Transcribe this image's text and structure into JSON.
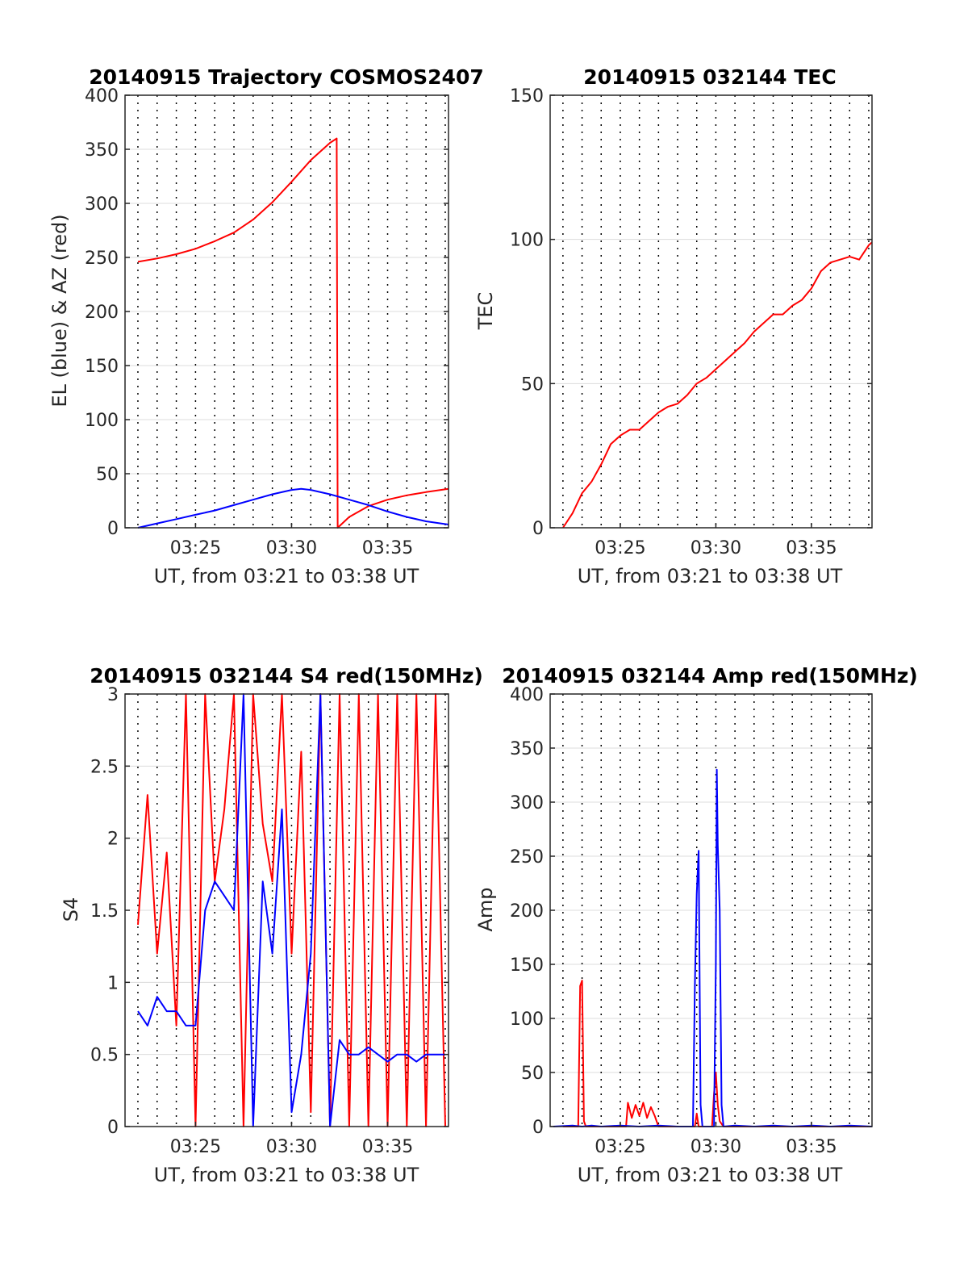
{
  "chart_data": [
    {
      "type": "line",
      "title": "20140915 Trajectory COSMOS2407",
      "xlabel": "UT, from 03:21 to 03:38 UT",
      "ylabel": "EL (blue) & AZ (red)",
      "xlim": [
        21.33,
        38.17
      ],
      "ylim": [
        0,
        400
      ],
      "yticks": [
        0,
        50,
        100,
        150,
        200,
        250,
        300,
        350,
        400
      ],
      "xticks": [
        25,
        30,
        35
      ],
      "xtick_labels": [
        "03:25",
        "03:30",
        "03:35"
      ],
      "grid": "dotted vertical every minute, horizontal at y ticks",
      "series": [
        {
          "color": "#ff0000",
          "x": [
            22.0,
            23.0,
            24.0,
            25.0,
            26.0,
            27.0,
            28.0,
            29.0,
            30.0,
            31.0,
            32.0,
            32.35,
            32.4,
            33.0,
            34.0,
            35.0,
            36.0,
            37.0,
            38.17
          ],
          "values": [
            246,
            249,
            253,
            258,
            265,
            273,
            285,
            301,
            320,
            340,
            356,
            360,
            0,
            10,
            20,
            26,
            30,
            33,
            36
          ]
        },
        {
          "color": "#0000ff",
          "x": [
            22.0,
            23.0,
            24.0,
            25.0,
            26.0,
            27.0,
            28.0,
            29.0,
            30.0,
            30.5,
            31.0,
            32.0,
            33.0,
            34.0,
            35.0,
            36.0,
            37.0,
            38.17
          ],
          "values": [
            0,
            4,
            8,
            12,
            16,
            21,
            26,
            31,
            35,
            36,
            35,
            31,
            26,
            21,
            15,
            10,
            6,
            3
          ]
        }
      ]
    },
    {
      "type": "line",
      "title": "20140915 032144 TEC",
      "xlabel": "UT, from 03:21 to 03:38 UT",
      "ylabel": "TEC",
      "xlim": [
        21.33,
        38.17
      ],
      "ylim": [
        0,
        150
      ],
      "yticks": [
        0,
        50,
        100,
        150
      ],
      "xticks": [
        25,
        30,
        35
      ],
      "xtick_labels": [
        "03:25",
        "03:30",
        "03:35"
      ],
      "series": [
        {
          "color": "#ff0000",
          "x": [
            22.0,
            22.5,
            23.0,
            23.5,
            24.0,
            24.5,
            25.0,
            25.5,
            26.0,
            26.5,
            27.0,
            27.5,
            28.0,
            28.5,
            29.0,
            29.5,
            30.0,
            30.5,
            31.0,
            31.5,
            32.0,
            32.5,
            33.0,
            33.5,
            34.0,
            34.5,
            35.0,
            35.5,
            36.0,
            36.5,
            37.0,
            37.5,
            38.0,
            38.17
          ],
          "values": [
            0,
            5,
            12,
            16,
            22,
            29,
            32,
            34,
            34,
            37,
            40,
            42,
            43,
            46,
            50,
            52,
            55,
            58,
            61,
            64,
            68,
            71,
            74,
            74,
            77,
            79,
            83,
            89,
            92,
            93,
            94,
            93,
            98,
            99
          ]
        }
      ]
    },
    {
      "type": "line",
      "title": "20140915 032144 S4 red(150MHz)",
      "xlabel": "UT, from 03:21 to 03:38 UT",
      "ylabel": "S4",
      "xlim": [
        21.33,
        38.17
      ],
      "ylim": [
        0,
        3
      ],
      "yticks": [
        0,
        0.5,
        1,
        1.5,
        2,
        2.5,
        3
      ],
      "ytick_labels": [
        "0",
        "0.5",
        "1",
        "1.5",
        "2",
        "2.5",
        "3"
      ],
      "xticks": [
        25,
        30,
        35
      ],
      "xtick_labels": [
        "03:25",
        "03:30",
        "03:35"
      ],
      "series": [
        {
          "color": "#ff0000",
          "x": [
            22.0,
            22.5,
            23.0,
            23.5,
            24.0,
            24.5,
            25.0,
            25.5,
            26.0,
            26.5,
            27.0,
            27.5,
            28.0,
            28.5,
            29.0,
            29.5,
            30.0,
            30.5,
            31.0,
            31.5,
            32.0,
            32.5,
            33.0,
            33.5,
            34.0,
            34.5,
            35.0,
            35.5,
            36.0,
            36.5,
            37.0,
            37.5,
            38.0
          ],
          "values": [
            1.4,
            2.3,
            1.2,
            1.9,
            0.7,
            3.0,
            0.0,
            3.0,
            1.7,
            2.2,
            3.0,
            0.0,
            3.0,
            2.1,
            1.7,
            3.0,
            1.2,
            2.6,
            0.1,
            3.0,
            0.0,
            3.0,
            0.0,
            3.0,
            0.0,
            3.0,
            0.0,
            3.0,
            0.0,
            3.0,
            0.0,
            3.0,
            0.0
          ]
        },
        {
          "color": "#0000ff",
          "x": [
            22.0,
            22.5,
            23.0,
            23.5,
            24.0,
            24.5,
            25.0,
            25.5,
            26.0,
            26.5,
            27.0,
            27.5,
            28.0,
            28.5,
            29.0,
            29.5,
            30.0,
            30.5,
            31.0,
            31.5,
            32.0,
            32.5,
            33.0,
            33.5,
            34.0,
            34.5,
            35.0,
            35.5,
            36.0,
            36.5,
            37.0,
            37.5,
            38.0
          ],
          "values": [
            0.8,
            0.7,
            0.9,
            0.8,
            0.8,
            0.7,
            0.7,
            1.5,
            1.7,
            1.6,
            1.5,
            3.0,
            0.0,
            1.7,
            1.2,
            2.2,
            0.1,
            0.5,
            1.2,
            3.0,
            0.0,
            0.6,
            0.5,
            0.5,
            0.55,
            0.5,
            0.45,
            0.5,
            0.5,
            0.45,
            0.5,
            0.5,
            0.5
          ]
        }
      ]
    },
    {
      "type": "line",
      "title": "20140915 032144 Amp red(150MHz)",
      "xlabel": "UT, from 03:21 to 03:38 UT",
      "ylabel": "Amp",
      "xlim": [
        21.33,
        38.17
      ],
      "ylim": [
        0,
        400
      ],
      "yticks": [
        0,
        50,
        100,
        150,
        200,
        250,
        300,
        350,
        400
      ],
      "xticks": [
        25,
        30,
        35
      ],
      "xtick_labels": [
        "03:25",
        "03:30",
        "03:35"
      ],
      "series": [
        {
          "color": "#ff0000",
          "x": [
            22.0,
            22.8,
            22.9,
            23.0,
            23.1,
            23.2,
            25.0,
            25.3,
            25.4,
            25.6,
            25.8,
            26.0,
            26.2,
            26.4,
            26.6,
            26.8,
            27.0,
            28.9,
            29.0,
            29.1,
            29.8,
            29.9,
            30.0,
            30.1,
            30.2,
            30.4,
            38.17
          ],
          "values": [
            0,
            0,
            130,
            135,
            5,
            0,
            0,
            0,
            22,
            8,
            20,
            10,
            22,
            8,
            18,
            10,
            0,
            0,
            12,
            0,
            0,
            30,
            50,
            20,
            5,
            0,
            0
          ]
        },
        {
          "color": "#0000ff",
          "x": [
            21.5,
            22.5,
            23.0,
            23.5,
            24.0,
            25.0,
            26.0,
            27.0,
            28.0,
            28.8,
            28.9,
            29.0,
            29.1,
            29.2,
            29.3,
            29.9,
            30.0,
            30.05,
            30.1,
            30.2,
            30.3,
            30.4,
            31.0,
            32.0,
            33.0,
            34.0,
            35.0,
            36.0,
            37.0,
            38.17
          ],
          "values": [
            0,
            1,
            0,
            1,
            0,
            1,
            0,
            1,
            0,
            0,
            130,
            215,
            255,
            20,
            0,
            0,
            150,
            330,
            260,
            200,
            20,
            0,
            1,
            0,
            1,
            0,
            1,
            0,
            1,
            0
          ]
        }
      ]
    }
  ]
}
